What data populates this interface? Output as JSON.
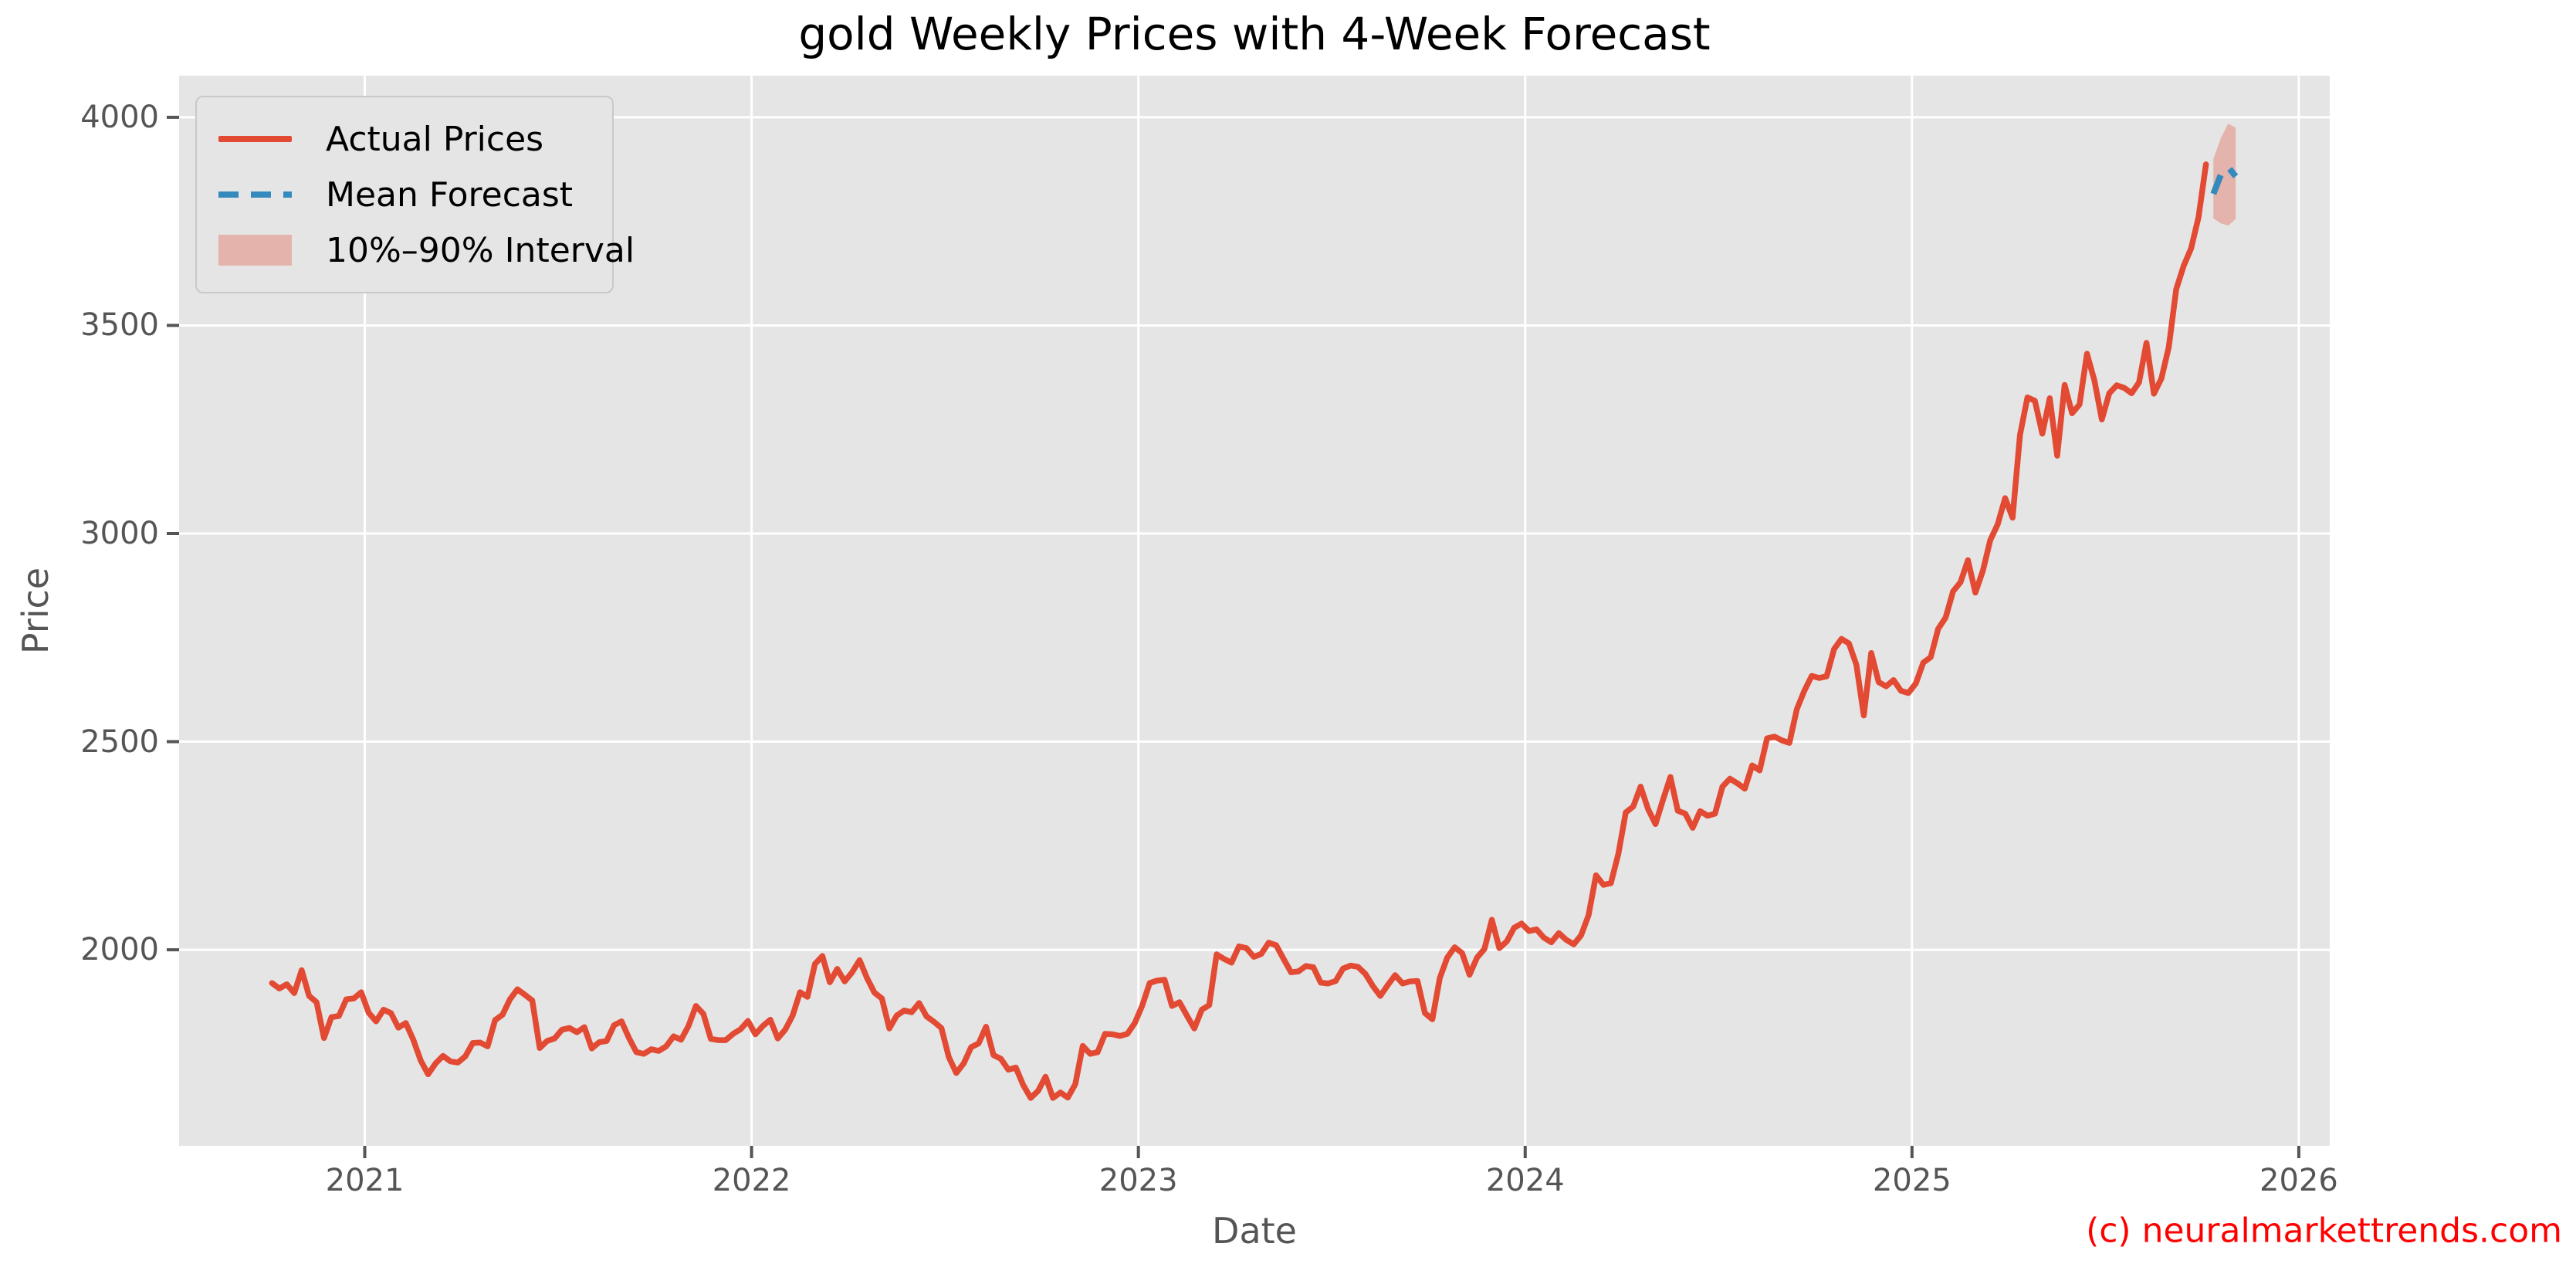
{
  "chart_data": {
    "type": "line",
    "title": "gold Weekly Prices with 4-Week Forecast",
    "xlabel": "Date",
    "ylabel": "Price",
    "watermark": "(c) neuralmarkettrends.com",
    "grid": true,
    "legend": {
      "position": "upper left",
      "labels": [
        "Actual Prices",
        "Mean Forecast",
        "10%–90% Interval"
      ]
    },
    "colors": {
      "actual": "#E24A33",
      "forecast": "#348ABD",
      "interval_fill": "rgba(226,74,51,0.32)",
      "plot_background": "#E5E5E5",
      "grid": "#FFFFFF",
      "tick": "#555555",
      "title": "#000000",
      "watermark": "#FF0000"
    },
    "x_domain": [
      2020.52,
      2026.08
    ],
    "y_domain": [
      1529,
      4100
    ],
    "x_ticks": [
      2021,
      2022,
      2023,
      2024,
      2025,
      2026
    ],
    "y_ticks": [
      2000,
      2500,
      3000,
      3500,
      4000
    ],
    "series": {
      "actual": {
        "name": "Actual Prices",
        "x_start": 2020.76,
        "x_step": 0.0192308,
        "values": [
          1920,
          1907,
          1917,
          1896,
          1951,
          1889,
          1874,
          1788,
          1838,
          1841,
          1881,
          1883,
          1898,
          1849,
          1828,
          1856,
          1848,
          1813,
          1824,
          1784,
          1734,
          1701,
          1727,
          1745,
          1732,
          1729,
          1744,
          1776,
          1777,
          1768,
          1831,
          1844,
          1881,
          1905,
          1892,
          1878,
          1764,
          1781,
          1787,
          1808,
          1812,
          1802,
          1814,
          1763,
          1778,
          1781,
          1819,
          1828,
          1788,
          1754,
          1750,
          1761,
          1757,
          1768,
          1792,
          1784,
          1817,
          1865,
          1846,
          1786,
          1783,
          1783,
          1798,
          1809,
          1829,
          1797,
          1817,
          1832,
          1787,
          1808,
          1842,
          1898,
          1887,
          1966,
          1985,
          1922,
          1954,
          1924,
          1946,
          1975,
          1932,
          1897,
          1883,
          1811,
          1842,
          1854,
          1850,
          1872,
          1840,
          1827,
          1812,
          1742,
          1704,
          1727,
          1766,
          1775,
          1815,
          1747,
          1738,
          1712,
          1717,
          1675,
          1644,
          1661,
          1695,
          1644,
          1657,
          1645,
          1677,
          1769,
          1750,
          1754,
          1798,
          1797,
          1793,
          1798,
          1824,
          1866,
          1920,
          1926,
          1928,
          1865,
          1874,
          1842,
          1811,
          1856,
          1867,
          1989,
          1978,
          1969,
          2008,
          2004,
          1983,
          1990,
          2017,
          2011,
          1978,
          1946,
          1948,
          1961,
          1958,
          1921,
          1919,
          1925,
          1955,
          1962,
          1959,
          1942,
          1913,
          1889,
          1915,
          1939,
          1919,
          1924,
          1925,
          1848,
          1833,
          1932,
          1981,
          2006,
          1992,
          1940,
          1981,
          2002,
          2072,
          2004,
          2020,
          2053,
          2063,
          2045,
          2049,
          2029,
          2018,
          2040,
          2024,
          2013,
          2035,
          2083,
          2179,
          2156,
          2160,
          2230,
          2330,
          2344,
          2392,
          2338,
          2302,
          2360,
          2415,
          2334,
          2327,
          2293,
          2333,
          2322,
          2327,
          2392,
          2411,
          2400,
          2387,
          2443,
          2431,
          2508,
          2512,
          2503,
          2497,
          2578,
          2622,
          2658,
          2653,
          2657,
          2722,
          2747,
          2736,
          2685,
          2563,
          2713,
          2643,
          2633,
          2648,
          2622,
          2617,
          2640,
          2690,
          2703,
          2771,
          2798,
          2861,
          2883,
          2936,
          2858,
          2910,
          2984,
          3022,
          3085,
          3038,
          3237,
          3327,
          3319,
          3240,
          3325,
          3187,
          3357,
          3289,
          3310,
          3432,
          3368,
          3274,
          3337,
          3356,
          3350,
          3337,
          3363,
          3458,
          3336,
          3372,
          3448,
          3587,
          3643,
          3685,
          3760,
          3887
        ]
      },
      "forecast": {
        "name": "Mean Forecast",
        "x_start": 2025.7792,
        "x_step": 0.0192308,
        "values": [
          3816,
          3862,
          3880,
          3858
        ]
      },
      "interval": {
        "name": "10%–90% Interval",
        "x_start": 2025.7792,
        "x_step": 0.0192308,
        "upper": [
          3900,
          3950,
          3985,
          3975
        ],
        "lower": [
          3757,
          3745,
          3740,
          3756
        ]
      }
    }
  }
}
